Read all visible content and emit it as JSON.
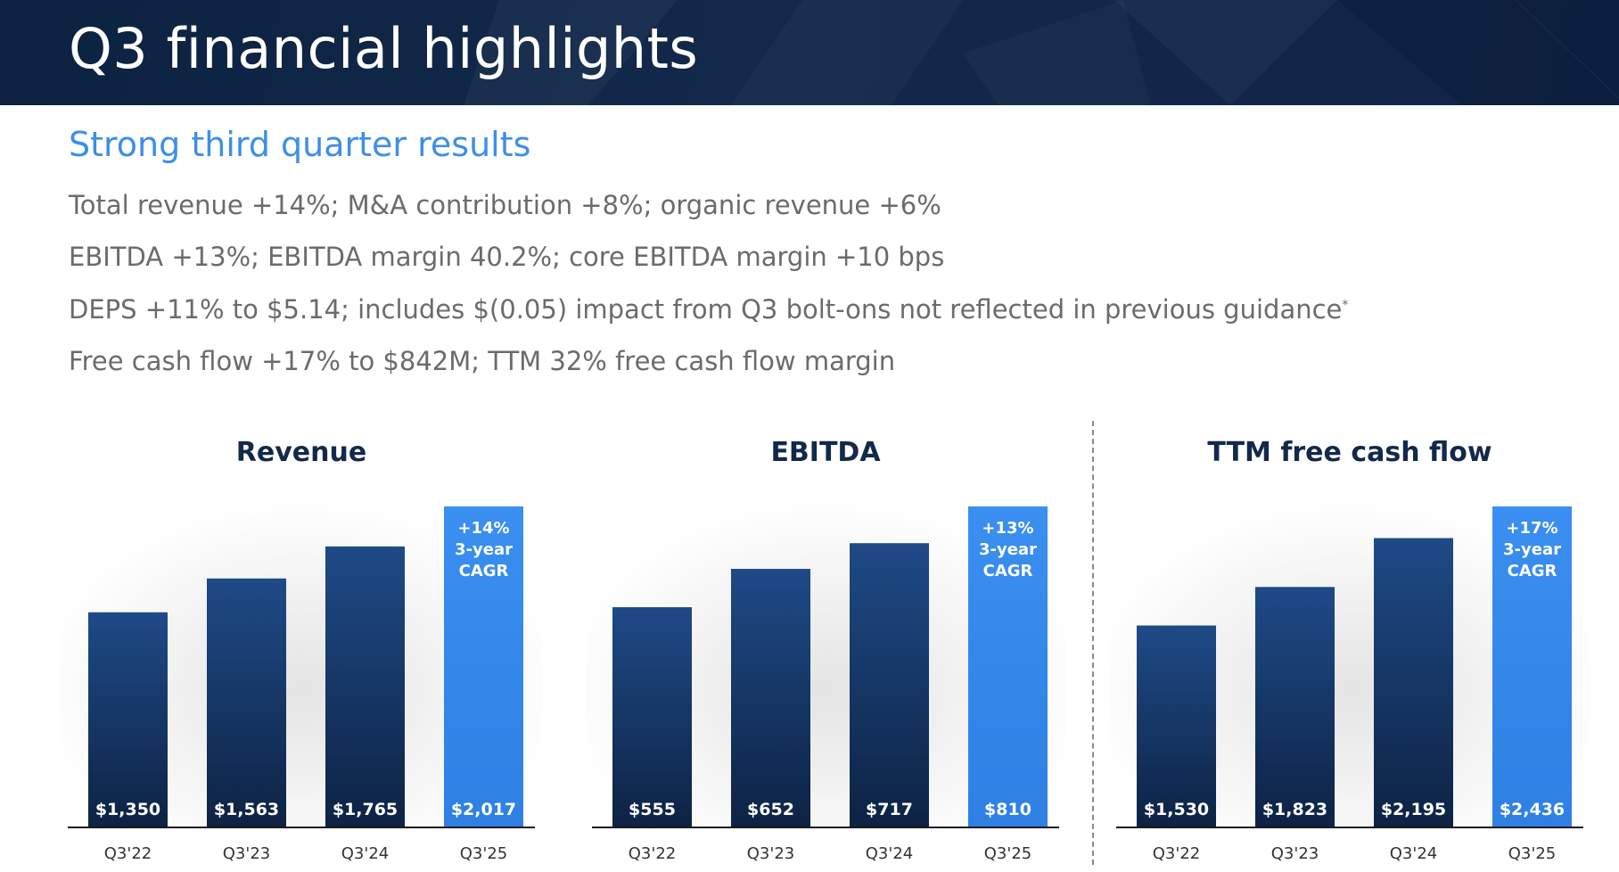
{
  "header": {
    "title": "Q3 financial highlights"
  },
  "subtitle": "Strong third quarter results",
  "bullets": [
    {
      "text": "Total revenue +14%; M&A contribution +8%; organic revenue +6%"
    },
    {
      "text": "EBITDA +13%; EBITDA margin 40.2%; core EBITDA margin +10 bps"
    },
    {
      "text": "DEPS +11% to $5.14; includes $(0.05) impact from Q3 bolt-ons not reflected in previous guidance",
      "mark": "*"
    },
    {
      "text": "Free cash flow +17% to $842M; TTM 32% free cash flow margin"
    }
  ],
  "colors": {
    "bar_dark_top": "#1e4a87",
    "bar_dark_bottom": "#0d2344",
    "bar_highlight": "#3a8ff0",
    "title": "#13294b",
    "subtitle": "#3d8fe6"
  },
  "chart_data": [
    {
      "type": "bar",
      "title": "Revenue",
      "categories": [
        "Q3'22",
        "Q3'23",
        "Q3'24",
        "Q3'25"
      ],
      "values": [
        1350,
        1563,
        1765,
        2017
      ],
      "value_labels": [
        "$1,350",
        "$1,563",
        "$1,765",
        "$2,017"
      ],
      "callout": [
        "+14%",
        "3-year",
        "CAGR"
      ],
      "highlight_index": 3
    },
    {
      "type": "bar",
      "title": "EBITDA",
      "categories": [
        "Q3'22",
        "Q3'23",
        "Q3'24",
        "Q3'25"
      ],
      "values": [
        555,
        652,
        717,
        810
      ],
      "value_labels": [
        "$555",
        "$652",
        "$717",
        "$810"
      ],
      "callout": [
        "+13%",
        "3-year",
        "CAGR"
      ],
      "highlight_index": 3
    },
    {
      "type": "bar",
      "title": "TTM free cash flow",
      "categories": [
        "Q3'22",
        "Q3'23",
        "Q3'24",
        "Q3'25"
      ],
      "values": [
        1530,
        1823,
        2195,
        2436
      ],
      "value_labels": [
        "$1,530",
        "$1,823",
        "$2,195",
        "$2,436"
      ],
      "callout": [
        "+17%",
        "3-year",
        "CAGR"
      ],
      "highlight_index": 3
    }
  ]
}
